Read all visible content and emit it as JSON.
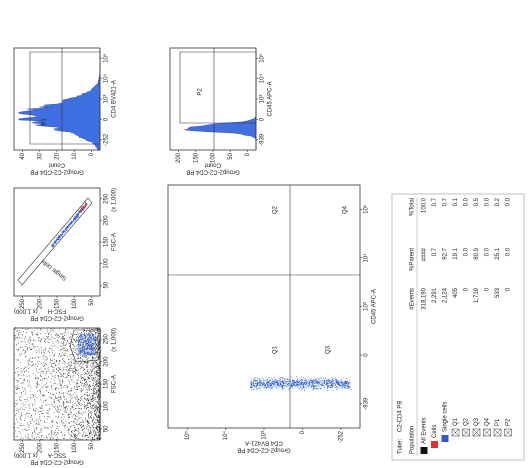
{
  "plots": [
    {
      "title": "Group2-C2-CD4 PB",
      "x_label": "FSC-A",
      "y_label": "SSC-A",
      "x_unit": "(x 1,000)",
      "y_unit": "(x 1,000)",
      "x_ticks": [
        "50",
        "100",
        "150",
        "200",
        "250"
      ],
      "y_ticks": [
        "50",
        "100",
        "150",
        "200",
        "250"
      ],
      "gates": []
    },
    {
      "title": "Group2-C2-CD4 PB",
      "x_label": "FSC-A",
      "y_label": "FSC-H",
      "x_unit": "(x 1,000)",
      "y_unit": "(x 1,000)",
      "x_ticks": [
        "50",
        "100",
        "150",
        "200",
        "250"
      ],
      "y_ticks": [
        "50",
        "100",
        "150",
        "200",
        "250"
      ],
      "gates": [
        "Single cells"
      ]
    },
    {
      "title": "Group2-C2-CD4 PB",
      "x_label": "CD4 BV421-A",
      "y_label": "Count",
      "x_ticks": [
        "-252",
        "0",
        "10³",
        "10⁴",
        "10⁵"
      ],
      "y_ticks": [
        "0",
        "10",
        "20",
        "30",
        "40"
      ],
      "gates": [
        "P1"
      ]
    },
    {
      "title": "Group2-C2-CD4 PB",
      "x_label": "CD45 APC-A",
      "y_label": "CD4 BV421-A",
      "x_ticks": [
        "-939",
        "0",
        "10³",
        "10⁴",
        "10⁵"
      ],
      "y_ticks": [
        "-252",
        "0",
        "10³",
        "10⁴",
        "10⁵"
      ],
      "gates": [
        "Q1",
        "Q2",
        "Q3",
        "Q4"
      ]
    },
    {
      "title": "Group2-C2-CD4 PB",
      "x_label": "CD45 APC-A",
      "y_label": "Count",
      "x_ticks": [
        "-939",
        "0",
        "10³",
        "10⁴",
        "10⁵"
      ],
      "y_ticks": [
        "0",
        "50",
        "100",
        "150",
        "200"
      ],
      "gates": [
        "P2"
      ]
    }
  ],
  "table": {
    "tube_label": "Tube:",
    "tube": "C2-CD4 PB",
    "headers": [
      "Population",
      "#Events",
      "%Parent",
      "%Total"
    ],
    "rows": [
      [
        "All Events",
        "318,190",
        "####",
        "100.0"
      ],
      [
        "Cells",
        "2,291",
        "0.7",
        "0.7"
      ],
      [
        "Single cells",
        "2,124",
        "92.7",
        "0.7"
      ],
      [
        "Q1",
        "405",
        "19.1",
        "0.1"
      ],
      [
        "Q2",
        "0",
        "0.0",
        "0.0"
      ],
      [
        "Q3",
        "1,719",
        "80.9",
        "0.5"
      ],
      [
        "Q4",
        "0",
        "0.0",
        "0.0"
      ],
      [
        "P1",
        "533",
        "25.1",
        "0.2"
      ],
      [
        "P2",
        "0",
        "0.0",
        "0.0"
      ]
    ]
  }
}
